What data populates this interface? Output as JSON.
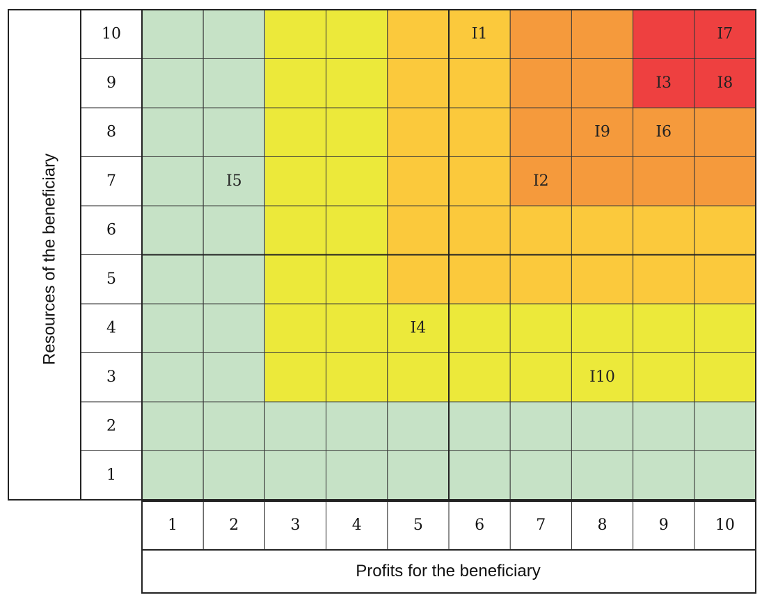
{
  "chart_data": {
    "type": "heatmap",
    "title": "",
    "xlabel": "Profits for the beneficiary",
    "ylabel": "Resources of the beneficiary",
    "x_ticks": [
      "1",
      "2",
      "3",
      "4",
      "5",
      "6",
      "7",
      "8",
      "9",
      "10"
    ],
    "y_ticks": [
      "10",
      "9",
      "8",
      "7",
      "6",
      "5",
      "4",
      "3",
      "2",
      "1"
    ],
    "colors": {
      "green": "#c6e2c6",
      "yellow": "#ece93a",
      "amber": "#fbc93c",
      "orange": "#f59a3c",
      "red": "#ee4040"
    },
    "grid": [
      [
        "green",
        "green",
        "yellow",
        "yellow",
        "amber",
        "amber",
        "orange",
        "orange",
        "red",
        "red"
      ],
      [
        "green",
        "green",
        "yellow",
        "yellow",
        "amber",
        "amber",
        "orange",
        "orange",
        "red",
        "red"
      ],
      [
        "green",
        "green",
        "yellow",
        "yellow",
        "amber",
        "amber",
        "orange",
        "orange",
        "orange",
        "orange"
      ],
      [
        "green",
        "green",
        "yellow",
        "yellow",
        "amber",
        "amber",
        "orange",
        "orange",
        "orange",
        "orange"
      ],
      [
        "green",
        "green",
        "yellow",
        "yellow",
        "amber",
        "amber",
        "amber",
        "amber",
        "amber",
        "amber"
      ],
      [
        "green",
        "green",
        "yellow",
        "yellow",
        "amber",
        "amber",
        "amber",
        "amber",
        "amber",
        "amber"
      ],
      [
        "green",
        "green",
        "yellow",
        "yellow",
        "yellow",
        "yellow",
        "yellow",
        "yellow",
        "yellow",
        "yellow"
      ],
      [
        "green",
        "green",
        "yellow",
        "yellow",
        "yellow",
        "yellow",
        "yellow",
        "yellow",
        "yellow",
        "yellow"
      ],
      [
        "green",
        "green",
        "green",
        "green",
        "green",
        "green",
        "green",
        "green",
        "green",
        "green"
      ],
      [
        "green",
        "green",
        "green",
        "green",
        "green",
        "green",
        "green",
        "green",
        "green",
        "green"
      ]
    ],
    "items": [
      {
        "label": "I1",
        "x": 6,
        "y": 10
      },
      {
        "label": "I7",
        "x": 10,
        "y": 10
      },
      {
        "label": "I3",
        "x": 9,
        "y": 9
      },
      {
        "label": "I8",
        "x": 10,
        "y": 9
      },
      {
        "label": "I9",
        "x": 8,
        "y": 8
      },
      {
        "label": "I6",
        "x": 9,
        "y": 8
      },
      {
        "label": "I5",
        "x": 2,
        "y": 7
      },
      {
        "label": "I2",
        "x": 7,
        "y": 7
      },
      {
        "label": "I4",
        "x": 5,
        "y": 4
      },
      {
        "label": "I10",
        "x": 8,
        "y": 3
      }
    ]
  }
}
